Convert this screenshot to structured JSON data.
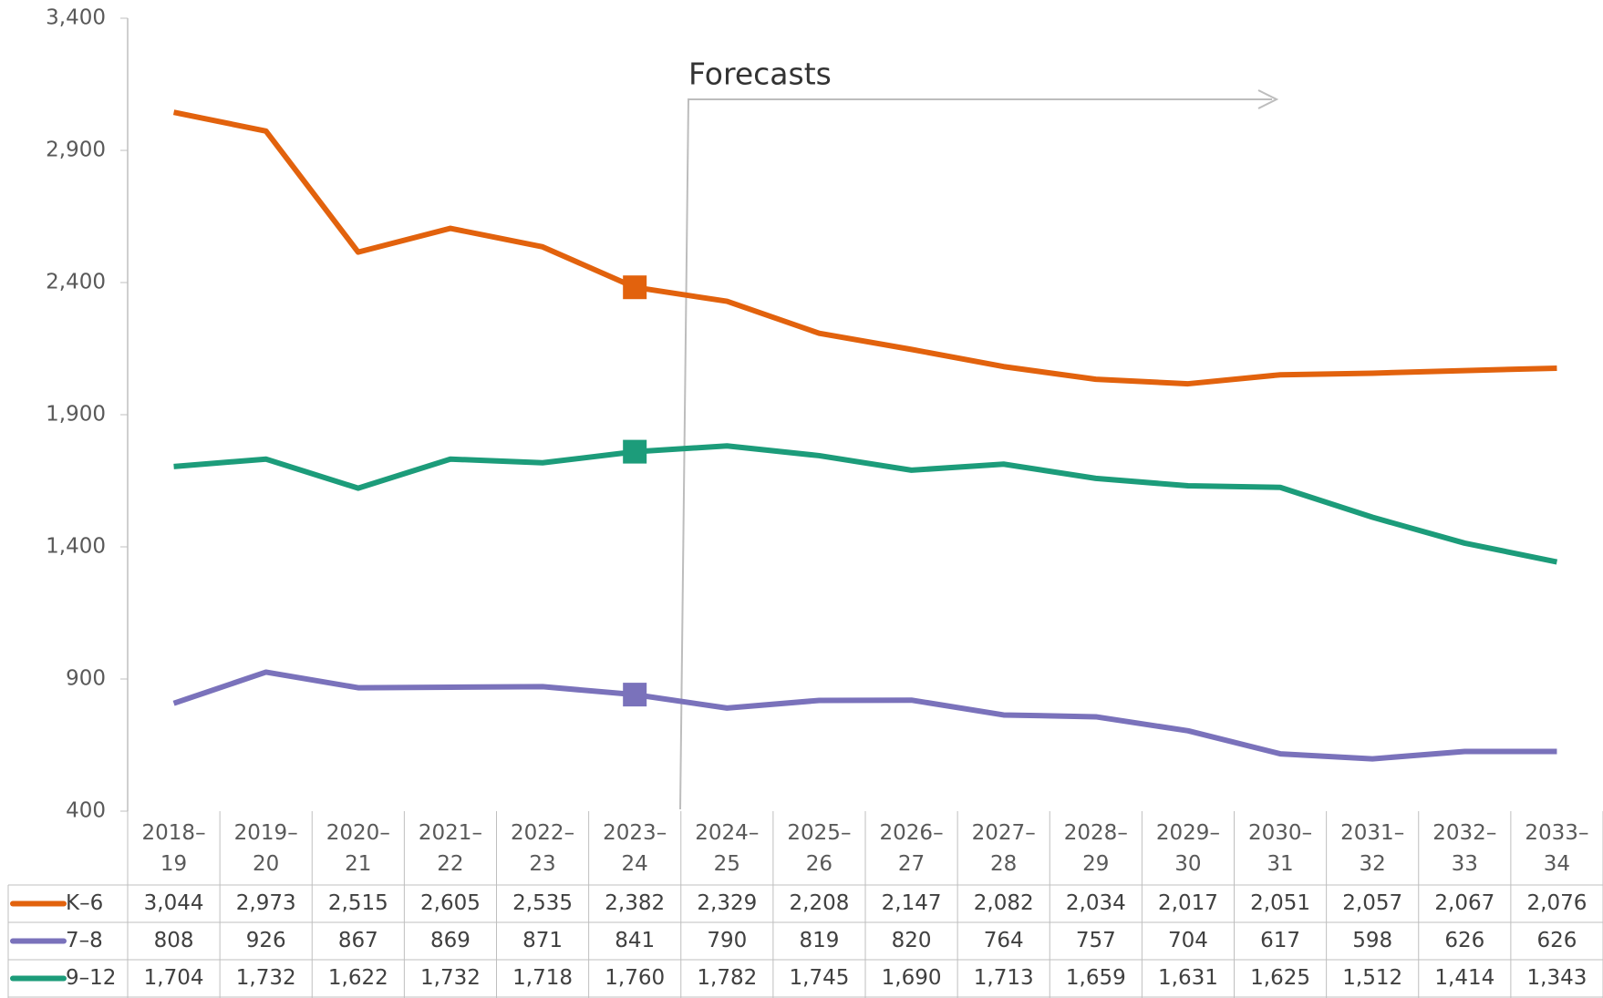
{
  "chart_data": {
    "type": "line",
    "categories": [
      "2018–19",
      "2019–20",
      "2020–21",
      "2021–22",
      "2022–23",
      "2023–24",
      "2024–25",
      "2025–26",
      "2026–27",
      "2027–28",
      "2028–29",
      "2029–30",
      "2030–31",
      "2031–32",
      "2032–33",
      "2033–34"
    ],
    "series": [
      {
        "name": "K–6",
        "color": "#e2620d",
        "values": [
          3044,
          2973,
          2515,
          2605,
          2535,
          2382,
          2329,
          2208,
          2147,
          2082,
          2034,
          2017,
          2051,
          2057,
          2067,
          2076
        ],
        "value_labels": [
          "3,044",
          "2,973",
          "2,515",
          "2,605",
          "2,535",
          "2,382",
          "2,329",
          "2,208",
          "2,147",
          "2,082",
          "2,034",
          "2,017",
          "2,051",
          "2,057",
          "2,067",
          "2,076"
        ]
      },
      {
        "name": "7–8",
        "color": "#7a72bb",
        "values": [
          808,
          926,
          867,
          869,
          871,
          841,
          790,
          819,
          820,
          764,
          757,
          704,
          617,
          598,
          626,
          626
        ],
        "value_labels": [
          "808",
          "926",
          "867",
          "869",
          "871",
          "841",
          "790",
          "819",
          "820",
          "764",
          "757",
          "704",
          "617",
          "598",
          "626",
          "626"
        ]
      },
      {
        "name": "9–12",
        "color": "#1c9c7a",
        "values": [
          1704,
          1732,
          1622,
          1732,
          1718,
          1760,
          1782,
          1745,
          1690,
          1713,
          1659,
          1631,
          1625,
          1512,
          1414,
          1343
        ],
        "value_labels": [
          "1,704",
          "1,732",
          "1,622",
          "1,732",
          "1,718",
          "1,760",
          "1,782",
          "1,745",
          "1,690",
          "1,713",
          "1,659",
          "1,631",
          "1,625",
          "1,512",
          "1,414",
          "1,343"
        ]
      }
    ],
    "ylim": [
      400,
      3400
    ],
    "yticks": [
      400,
      900,
      {
        "value": 1400,
        "label": "1,400"
      },
      {
        "value": 1900,
        "label": "1,900"
      },
      {
        "value": 2400,
        "label": "2,400"
      },
      {
        "value": 2900,
        "label": "2,900"
      },
      {
        "value": 3400,
        "label": "3,400"
      }
    ],
    "highlight_index": 5,
    "annotation": "Forecasts"
  }
}
